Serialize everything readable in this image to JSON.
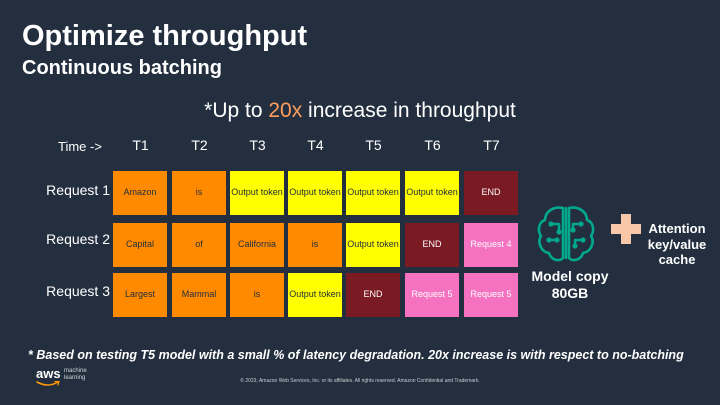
{
  "title": "Optimize throughput",
  "subtitle": "Continuous batching",
  "headline": {
    "prefix": "*Up to ",
    "highlight": "20x",
    "suffix": " increase in throughput",
    "highlight_color": "#ff9d5c"
  },
  "grid": {
    "time_label": "Time ->",
    "columns": [
      "T1",
      "T2",
      "T3",
      "T4",
      "T5",
      "T6",
      "T7"
    ],
    "rows": [
      {
        "label": "Request 1",
        "cells": [
          {
            "text": "Amazon",
            "kind": "orange"
          },
          {
            "text": "is",
            "kind": "orange"
          },
          {
            "text": "Output token",
            "kind": "yellow"
          },
          {
            "text": "Output token",
            "kind": "yellow"
          },
          {
            "text": "Output token",
            "kind": "yellow"
          },
          {
            "text": "Output token",
            "kind": "yellow"
          },
          {
            "text": "END",
            "kind": "maroon"
          }
        ]
      },
      {
        "label": "Request 2",
        "cells": [
          {
            "text": "Capital",
            "kind": "orange"
          },
          {
            "text": "of",
            "kind": "orange"
          },
          {
            "text": "California",
            "kind": "orange"
          },
          {
            "text": "is",
            "kind": "orange"
          },
          {
            "text": "Output token",
            "kind": "yellow"
          },
          {
            "text": "END",
            "kind": "maroon"
          },
          {
            "text": "Request 4",
            "kind": "pink"
          }
        ]
      },
      {
        "label": "Request 3",
        "cells": [
          {
            "text": "Largest",
            "kind": "orange"
          },
          {
            "text": "Mammal",
            "kind": "orange"
          },
          {
            "text": "is",
            "kind": "orange"
          },
          {
            "text": "Output token",
            "kind": "yellow"
          },
          {
            "text": "END",
            "kind": "maroon"
          },
          {
            "text": "Request 5",
            "kind": "pink"
          },
          {
            "text": "Request 5",
            "kind": "pink"
          }
        ]
      }
    ],
    "colors": {
      "orange": "#ff8a00",
      "yellow": "#ffff00",
      "maroon": "#7a1a22",
      "pink": "#f472c0"
    }
  },
  "model": {
    "icon": "brain-chip-icon",
    "label_line1": "Model copy",
    "label_line2": "80GB",
    "icon_color": "#01a88d"
  },
  "cache": {
    "icon": "plus-icon",
    "label_line1": "Attention",
    "label_line2": "key/value",
    "label_line3": "cache",
    "icon_color": "#f9c8a8"
  },
  "footnote": "* Based on testing T5 model with a small % of latency degradation. 20x increase is with respect to no-batching",
  "brand": {
    "logo_text": "aws",
    "sub_line1": "machine",
    "sub_line2": "learning"
  },
  "copyright": "© 2023, Amazon Web Services, Inc. or its affiliates. All rights reserved. Amazon Confidential and Trademark."
}
